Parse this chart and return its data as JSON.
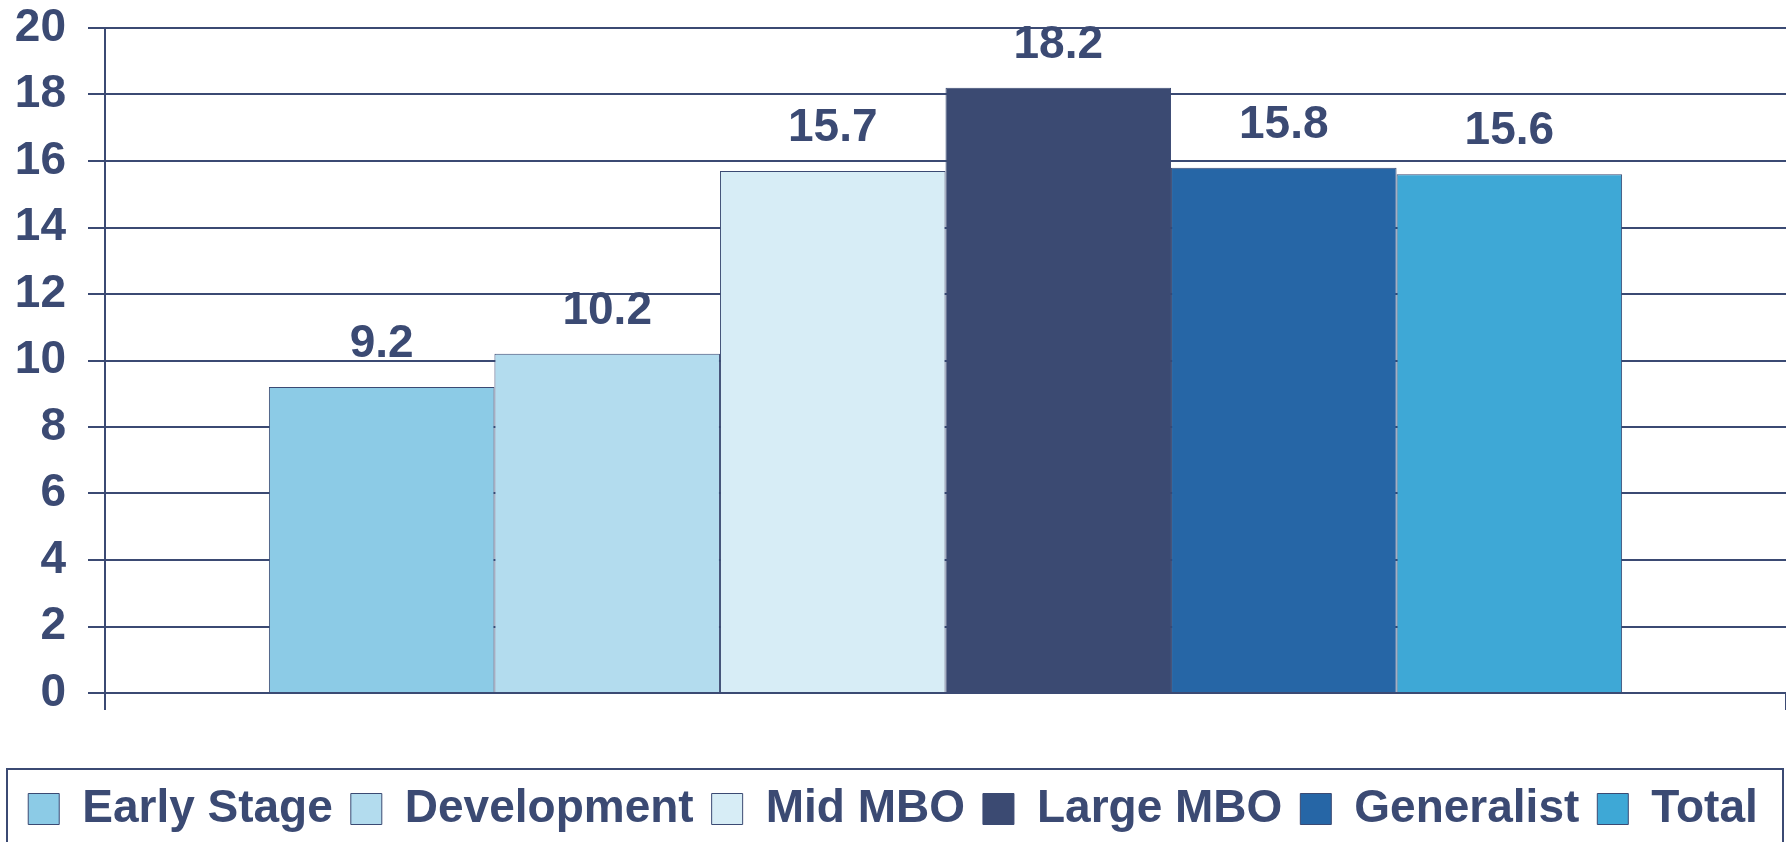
{
  "chart_data": {
    "type": "bar",
    "categories": [
      null
    ],
    "series": [
      {
        "name": "Early Stage",
        "color": "#8ccbe6",
        "values": [
          9.2
        ]
      },
      {
        "name": "Development",
        "color": "#b3dcee",
        "values": [
          10.2
        ]
      },
      {
        "name": "Mid MBO",
        "color": "#d7edf6",
        "values": [
          15.7
        ]
      },
      {
        "name": "Large MBO",
        "color": "#3b4a72",
        "values": [
          18.2
        ]
      },
      {
        "name": "Generalist",
        "color": "#2666a6",
        "values": [
          15.8
        ]
      },
      {
        "name": "Total",
        "color": "#3ea8d6",
        "values": [
          15.6
        ]
      }
    ],
    "ylim": [
      0,
      20
    ],
    "yticks": [
      0,
      2,
      4,
      6,
      8,
      10,
      12,
      14,
      16,
      18,
      20
    ],
    "grid": "y",
    "legend": "bottom",
    "tick_labels": "y",
    "data_labels": true
  }
}
